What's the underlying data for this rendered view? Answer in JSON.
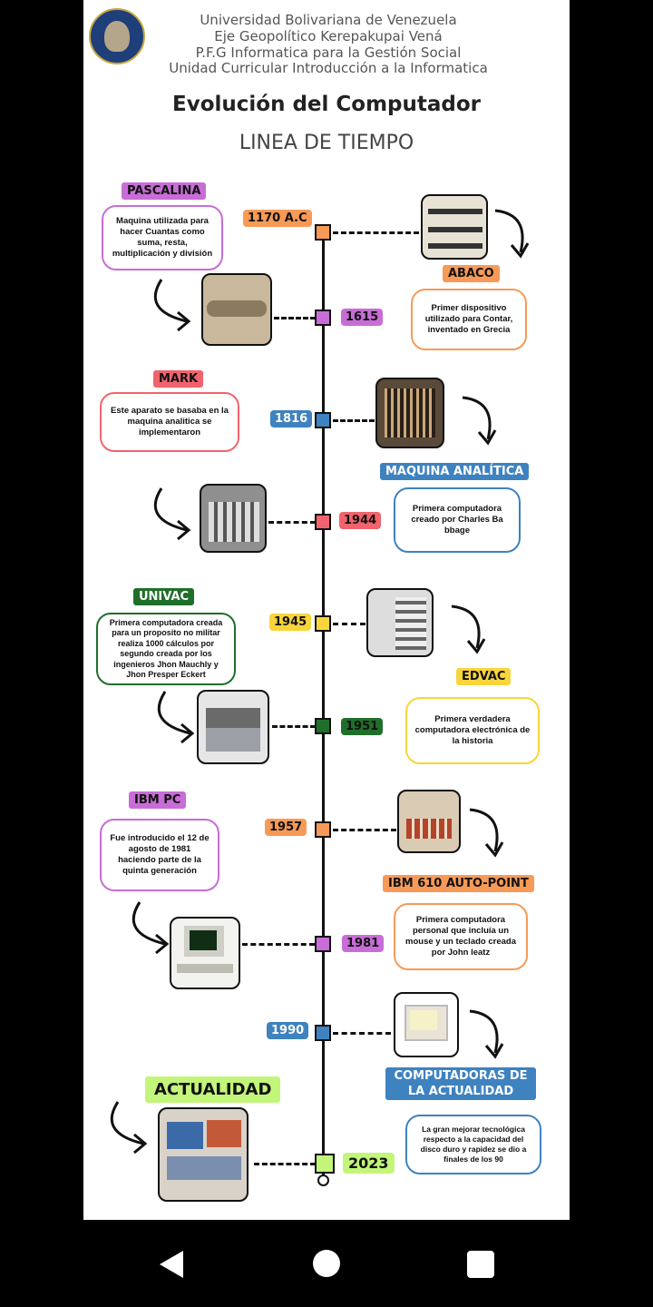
{
  "header": {
    "line1": "Universidad Bolivariana de Venezuela",
    "line2": "Eje Geopolítico Kerepakupai Vená",
    "line3": "P.F.G Informatica para la Gestión Social",
    "line4": "Unidad Curricular Introducción a la Informatica",
    "title": "Evolución del Computador",
    "subtitle": "LINEA DE TIEMPO"
  },
  "events": [
    {
      "name": "PASCALINA",
      "desc": "Maquina utilizada para hacer Cuantas como suma, resta, multiplicación y división",
      "date": "1615"
    },
    {
      "name": "ABACO",
      "desc": "Primer dispositivo utilizado para Contar, inventado en Grecia",
      "date": "1170 A.C"
    },
    {
      "name": "MARK",
      "desc": "Este aparato se basaba en la maquina analitica se implementaron",
      "date": "1944"
    },
    {
      "name": "MAQUINA ANALÍTICA",
      "desc": "Primera computadora creado por Charles Ba bbage",
      "date": "1816"
    },
    {
      "name": "UNIVAC",
      "desc": "Primera computadora creada para un proposito no militar realiza 1000 cálculos por segundo creada por los ingenieros Jhon Mauchly y Jhon Presper Eckert",
      "date": "1951"
    },
    {
      "name": "EDVAC",
      "desc": "Primera verdadera computadora electrónica de la historia",
      "date": "1945"
    },
    {
      "name": "IBM PC",
      "desc": "Fue introducido el 12 de agosto de 1981 haciendo parte de la quinta generación",
      "date": "1981"
    },
    {
      "name": "IBM 610 AUTO-POINT",
      "desc": "Primera computadora personal que incluía un mouse y un teclado creada por John leatz",
      "date": "1957"
    },
    {
      "name": "ACTUALIDAD",
      "date": "2023"
    },
    {
      "name": "COMPUTADORAS DE LA ACTUALIDAD",
      "desc": "La gran mejorar tecnológica respecto a la capacidad del disco duro y rapidez se dio a finales de los 90",
      "date": "1990"
    }
  ],
  "colors": {
    "orange": "#f79a57",
    "purple": "#c86dd7",
    "red": "#f1646d",
    "blue": "#3f82c0",
    "green": "#1f6f2a",
    "yellow": "#f9d53c",
    "lime": "#c3f57a"
  },
  "nav": {
    "back": "back-icon",
    "home": "home-icon",
    "recents": "recents-icon"
  }
}
